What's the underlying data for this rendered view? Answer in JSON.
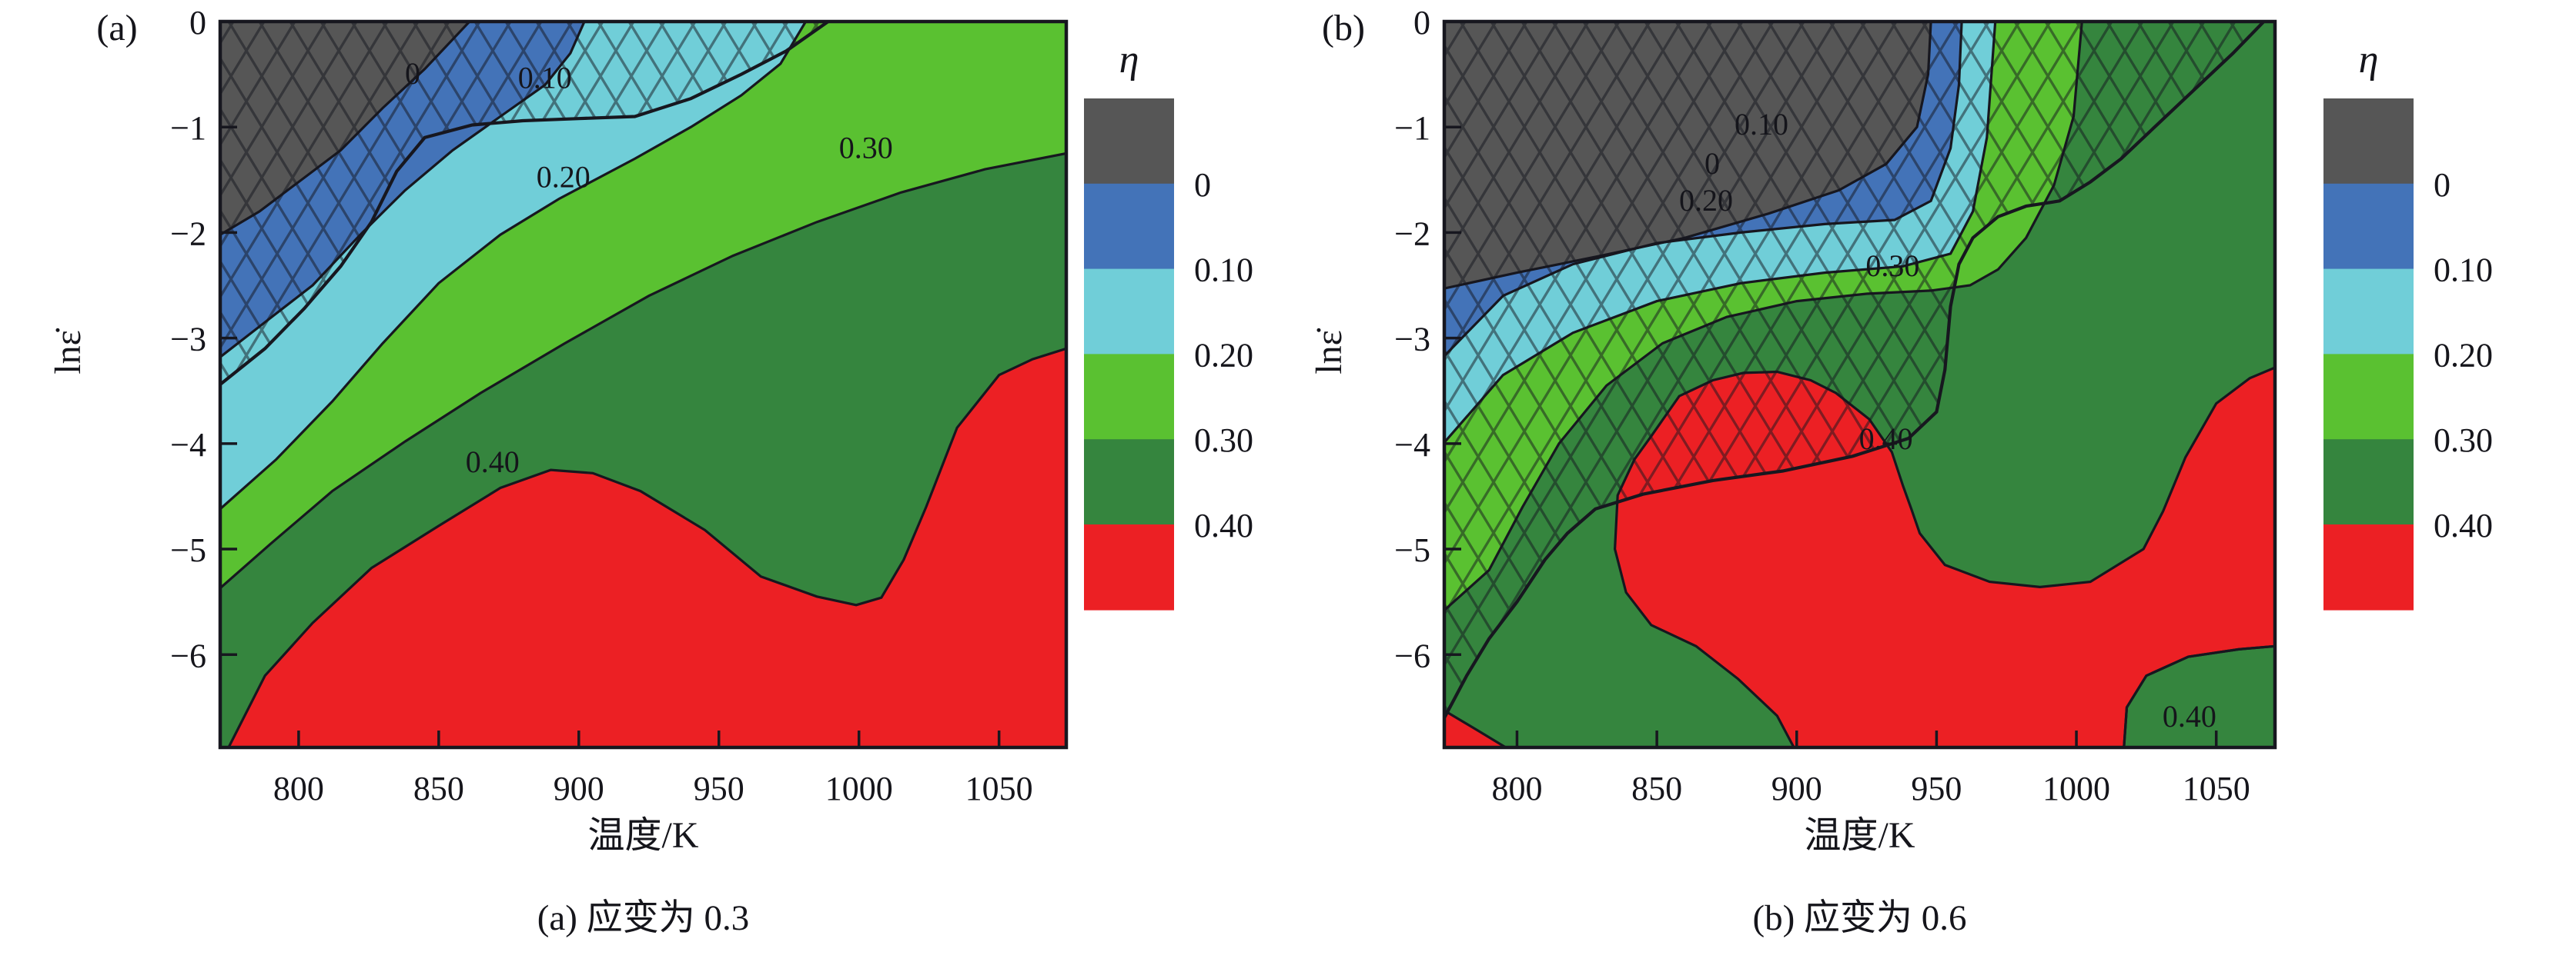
{
  "figure": {
    "background": "#ffffff",
    "panel_tags": [
      "(a)",
      "(b)"
    ]
  },
  "colors": {
    "levels": [
      "#565656",
      "#4373b8",
      "#70ced8",
      "#5ac131",
      "#35853e",
      "#ec2024"
    ],
    "level_names": [
      "gray-below-0",
      "blue-0-0.10",
      "cyan-0.10-0.20",
      "lightgreen-0.20-0.30",
      "darkgreen-0.30-0.40",
      "red-above-0.40"
    ],
    "contour_line": "#17171f",
    "axis": "#17171f",
    "text": "#15151b",
    "hatch_line": "#14161d"
  },
  "colorbar": {
    "title": "η",
    "tick_labels": [
      "0",
      "0.10",
      "0.20",
      "0.30",
      "0.40"
    ]
  },
  "chart_data": [
    {
      "type": "contour",
      "subtype": "filled-contour-processing-map-with-instability-hatch",
      "panel_tag": "(a)",
      "caption": "(a) 应变为 0.3",
      "strain": 0.3,
      "xlabel": "温度/K",
      "ylabel": "lnε̇",
      "legend_title": "η",
      "x_range": [
        772,
        1074
      ],
      "y_range": [
        -6.88,
        0
      ],
      "x_ticks": [
        800,
        850,
        900,
        950,
        1000,
        1050
      ],
      "y_ticks": [
        0,
        -1,
        -2,
        -3,
        -4,
        -5,
        -6
      ],
      "levels": [
        0,
        0.1,
        0.2,
        0.3,
        0.4
      ],
      "base_level_color_index": 5,
      "stack": [
        {
          "level": "0.40",
          "color_index": 4
        },
        {
          "level": "0.30",
          "color_index": 3
        },
        {
          "level": "0.20",
          "color_index": 2
        },
        {
          "level": "0.10",
          "color_index": 1
        },
        {
          "level": "0",
          "color_index": 0
        }
      ],
      "contour_lines": {
        "0": [
          [
            772,
            -2.02
          ],
          [
            786,
            -1.8
          ],
          [
            800,
            -1.52
          ],
          [
            815,
            -1.22
          ],
          [
            830,
            -0.82
          ],
          [
            845,
            -0.45
          ],
          [
            861,
            0
          ]
        ],
        "0.10": [
          [
            772,
            -3.18
          ],
          [
            788,
            -2.85
          ],
          [
            805,
            -2.5
          ],
          [
            822,
            -2.02
          ],
          [
            838,
            -1.6
          ],
          [
            855,
            -1.22
          ],
          [
            872,
            -0.9
          ],
          [
            888,
            -0.6
          ],
          [
            897,
            -0.3
          ],
          [
            902,
            0
          ]
        ],
        "0.20": [
          [
            772,
            -4.62
          ],
          [
            792,
            -4.15
          ],
          [
            812,
            -3.6
          ],
          [
            830,
            -3.05
          ],
          [
            850,
            -2.48
          ],
          [
            872,
            -2.02
          ],
          [
            893,
            -1.68
          ],
          [
            920,
            -1.3
          ],
          [
            940,
            -1.0
          ],
          [
            958,
            -0.7
          ],
          [
            972,
            -0.4
          ],
          [
            981,
            0
          ]
        ],
        "0.30": [
          [
            772,
            -5.37
          ],
          [
            790,
            -4.95
          ],
          [
            812,
            -4.45
          ],
          [
            838,
            -3.98
          ],
          [
            865,
            -3.52
          ],
          [
            895,
            -3.05
          ],
          [
            925,
            -2.6
          ],
          [
            955,
            -2.22
          ],
          [
            985,
            -1.9
          ],
          [
            1015,
            -1.62
          ],
          [
            1045,
            -1.4
          ],
          [
            1074,
            -1.25
          ]
        ],
        "0.40": [
          [
            775,
            -6.88
          ],
          [
            788,
            -6.2
          ],
          [
            805,
            -5.7
          ],
          [
            826,
            -5.18
          ],
          [
            850,
            -4.78
          ],
          [
            872,
            -4.42
          ],
          [
            890,
            -4.25
          ],
          [
            905,
            -4.28
          ],
          [
            922,
            -4.45
          ],
          [
            945,
            -4.82
          ],
          [
            965,
            -5.26
          ],
          [
            985,
            -5.45
          ],
          [
            999,
            -5.53
          ],
          [
            1008,
            -5.46
          ],
          [
            1016,
            -5.1
          ],
          [
            1024,
            -4.6
          ],
          [
            1035,
            -3.85
          ],
          [
            1050,
            -3.35
          ],
          [
            1062,
            -3.2
          ],
          [
            1074,
            -3.1
          ]
        ]
      },
      "extra_regions": [],
      "instability_hatch_boundary": [
        [
          772,
          -3.44
        ],
        [
          788,
          -3.1
        ],
        [
          802,
          -2.72
        ],
        [
          815,
          -2.32
        ],
        [
          826,
          -1.9
        ],
        [
          835,
          -1.42
        ],
        [
          845,
          -1.1
        ],
        [
          862,
          -0.98
        ],
        [
          880,
          -0.94
        ],
        [
          900,
          -0.92
        ],
        [
          920,
          -0.9
        ],
        [
          940,
          -0.73
        ],
        [
          958,
          -0.5
        ],
        [
          974,
          -0.28
        ],
        [
          989,
          0
        ]
      ],
      "contour_labels": [
        {
          "text": "0",
          "x": 840.7,
          "y": -0.49
        },
        {
          "text": "0.10",
          "x": 887.9,
          "y": -0.53
        },
        {
          "text": "0.20",
          "x": 894.5,
          "y": -1.47
        },
        {
          "text": "0.30",
          "x": 1002.5,
          "y": -1.19
        },
        {
          "text": "0.40",
          "x": 869.2,
          "y": -4.17
        }
      ]
    },
    {
      "type": "contour",
      "subtype": "filled-contour-processing-map-with-instability-hatch",
      "panel_tag": "(b)",
      "caption": "(b) 应变为 0.6",
      "strain": 0.6,
      "xlabel": "温度/K",
      "ylabel": "lnε̇",
      "legend_title": "η",
      "x_range": [
        774,
        1071
      ],
      "y_range": [
        -6.88,
        0
      ],
      "x_ticks": [
        800,
        850,
        900,
        950,
        1000,
        1050
      ],
      "y_ticks": [
        0,
        -1,
        -2,
        -3,
        -4,
        -5,
        -6
      ],
      "levels": [
        0,
        0.1,
        0.2,
        0.3,
        0.4
      ],
      "base_level_color_index": 4,
      "stack": [
        {
          "level": "0.30",
          "color_index": 3
        },
        {
          "level": "0.20",
          "color_index": 2
        },
        {
          "level": "0.10",
          "color_index": 1
        },
        {
          "level": "0",
          "color_index": 0
        }
      ],
      "contour_lines": {
        "0": [
          [
            774,
            -2.53
          ],
          [
            800,
            -2.38
          ],
          [
            830,
            -2.22
          ],
          [
            860,
            -2.05
          ],
          [
            890,
            -1.82
          ],
          [
            915,
            -1.6
          ],
          [
            932,
            -1.35
          ],
          [
            943,
            -1.0
          ],
          [
            947,
            -0.5
          ],
          [
            948,
            0
          ]
        ],
        "0.10": [
          [
            774,
            -3.17
          ],
          [
            795,
            -2.6
          ],
          [
            820,
            -2.3
          ],
          [
            850,
            -2.1
          ],
          [
            880,
            -2.0
          ],
          [
            910,
            -1.92
          ],
          [
            935,
            -1.88
          ],
          [
            948,
            -1.7
          ],
          [
            955,
            -1.2
          ],
          [
            958,
            -0.6
          ],
          [
            959,
            0
          ]
        ],
        "0.20": [
          [
            774,
            -3.99
          ],
          [
            795,
            -3.35
          ],
          [
            820,
            -2.95
          ],
          [
            850,
            -2.65
          ],
          [
            880,
            -2.48
          ],
          [
            910,
            -2.38
          ],
          [
            938,
            -2.32
          ],
          [
            955,
            -2.2
          ],
          [
            963,
            -1.8
          ],
          [
            968,
            -1.1
          ],
          [
            971,
            0
          ]
        ],
        "0.30": [
          [
            774,
            -5.58
          ],
          [
            790,
            -5.2
          ],
          [
            802,
            -4.6
          ],
          [
            815,
            -4.0
          ],
          [
            832,
            -3.45
          ],
          [
            852,
            -3.05
          ],
          [
            875,
            -2.8
          ],
          [
            900,
            -2.65
          ],
          [
            925,
            -2.58
          ],
          [
            948,
            -2.55
          ],
          [
            962,
            -2.5
          ],
          [
            972,
            -2.35
          ],
          [
            982,
            -2.05
          ],
          [
            992,
            -1.55
          ],
          [
            999,
            -0.9
          ],
          [
            1002,
            0
          ]
        ]
      },
      "extra_regions": [
        {
          "name": "red-main-region",
          "color_index": 5,
          "closed": true,
          "points": [
            [
              848,
              -3.93
            ],
            [
              858,
              -3.55
            ],
            [
              870,
              -3.4
            ],
            [
              881,
              -3.33
            ],
            [
              893,
              -3.32
            ],
            [
              905,
              -3.4
            ],
            [
              914,
              -3.52
            ],
            [
              926,
              -3.77
            ],
            [
              934,
              -4.08
            ],
            [
              938,
              -4.4
            ],
            [
              941,
              -4.62
            ],
            [
              944,
              -4.85
            ],
            [
              953,
              -5.15
            ],
            [
              969,
              -5.31
            ],
            [
              987,
              -5.36
            ],
            [
              1005,
              -5.31
            ],
            [
              1024,
              -5.0
            ],
            [
              1031,
              -4.64
            ],
            [
              1039,
              -4.13
            ],
            [
              1050,
              -3.62
            ],
            [
              1062,
              -3.38
            ],
            [
              1071,
              -3.28
            ],
            [
              1071,
              -5.92
            ],
            [
              1058,
              -5.95
            ],
            [
              1040,
              -6.02
            ],
            [
              1025,
              -6.2
            ],
            [
              1018,
              -6.5
            ],
            [
              1017,
              -6.88
            ],
            [
              899,
              -6.88
            ],
            [
              893,
              -6.58
            ],
            [
              879,
              -6.23
            ],
            [
              864,
              -5.92
            ],
            [
              848,
              -5.72
            ],
            [
              839,
              -5.41
            ],
            [
              835,
              -5.0
            ],
            [
              836,
              -4.49
            ],
            [
              842,
              -4.15
            ]
          ]
        },
        {
          "name": "red-corner-sliver",
          "color_index": 5,
          "closed": true,
          "points": [
            [
              774,
              -6.53
            ],
            [
              786,
              -6.72
            ],
            [
              796,
              -6.88
            ],
            [
              774,
              -6.88
            ]
          ]
        },
        {
          "name": "darkgreen-corner-patch",
          "color_index": 4,
          "closed": true,
          "points": [
            [
              1017,
              -6.88
            ],
            [
              1018,
              -6.5
            ],
            [
              1025,
              -6.2
            ],
            [
              1040,
              -6.02
            ],
            [
              1058,
              -5.95
            ],
            [
              1071,
              -5.92
            ],
            [
              1071,
              -6.88
            ]
          ]
        }
      ],
      "instability_hatch_boundary": [
        [
          774,
          -6.6
        ],
        [
          782,
          -6.2
        ],
        [
          790,
          -5.85
        ],
        [
          800,
          -5.5
        ],
        [
          810,
          -5.1
        ],
        [
          818,
          -4.85
        ],
        [
          828,
          -4.62
        ],
        [
          845,
          -4.48
        ],
        [
          870,
          -4.35
        ],
        [
          895,
          -4.26
        ],
        [
          920,
          -4.12
        ],
        [
          940,
          -3.95
        ],
        [
          950,
          -3.7
        ],
        [
          953,
          -3.3
        ],
        [
          955,
          -2.7
        ],
        [
          958,
          -2.3
        ],
        [
          963,
          -2.05
        ],
        [
          972,
          -1.85
        ],
        [
          982,
          -1.75
        ],
        [
          994,
          -1.7
        ],
        [
          1005,
          -1.52
        ],
        [
          1016,
          -1.3
        ],
        [
          1030,
          -0.95
        ],
        [
          1044,
          -0.6
        ],
        [
          1056,
          -0.3
        ],
        [
          1067,
          0
        ]
      ],
      "contour_labels": [
        {
          "text": "0",
          "x": 869.8,
          "y": -1.34
        },
        {
          "text": "0.10",
          "x": 887.4,
          "y": -0.97
        },
        {
          "text": "0.20",
          "x": 867.6,
          "y": -1.69
        },
        {
          "text": "0.30",
          "x": 934.3,
          "y": -2.31
        },
        {
          "text": "0.40",
          "x": 931.9,
          "y": -3.95
        },
        {
          "text": "0.40",
          "x": 1040.4,
          "y": -6.58
        }
      ]
    }
  ]
}
